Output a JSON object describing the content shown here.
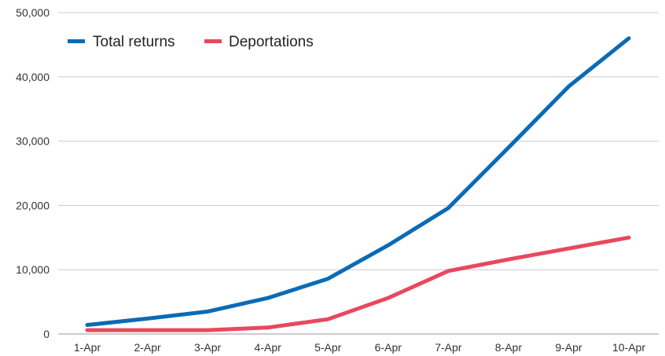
{
  "chart_data": {
    "type": "line",
    "categories": [
      "1-Apr",
      "2-Apr",
      "3-Apr",
      "4-Apr",
      "5-Apr",
      "6-Apr",
      "7-Apr",
      "8-Apr",
      "9-Apr",
      "10-Apr"
    ],
    "series": [
      {
        "name": "Total returns",
        "color": "#0a6bb5",
        "values": [
          1400,
          2400,
          3500,
          5600,
          8600,
          13800,
          19600,
          29000,
          38500,
          46000
        ]
      },
      {
        "name": "Deportations",
        "color": "#e8485e",
        "values": [
          600,
          600,
          600,
          1000,
          2300,
          5600,
          9800,
          11600,
          13300,
          15000
        ]
      }
    ],
    "title": "",
    "xlabel": "",
    "ylabel": "",
    "ylim": [
      0,
      50000
    ],
    "yticks": [
      0,
      10000,
      20000,
      30000,
      40000,
      50000
    ],
    "ytick_labels": [
      "0",
      "10,000",
      "20,000",
      "30,000",
      "40,000",
      "50,000"
    ],
    "grid": true,
    "legend": "top-left"
  }
}
